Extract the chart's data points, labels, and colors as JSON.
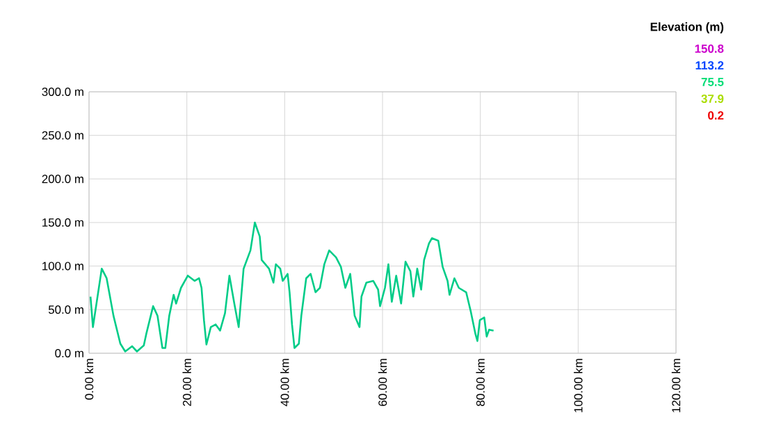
{
  "chart_data": {
    "type": "line",
    "x": [
      0.3,
      0.8,
      2.6,
      3.6,
      5.0,
      6.4,
      7.4,
      8.8,
      9.8,
      11.2,
      11.7,
      13.1,
      14.0,
      15.0,
      15.6,
      16.4,
      17.3,
      17.8,
      18.8,
      20.2,
      21.6,
      22.5,
      23.0,
      23.5,
      24.0,
      24.9,
      25.9,
      26.8,
      27.8,
      28.7,
      29.7,
      30.6,
      31.6,
      33.0,
      33.9,
      34.9,
      35.3,
      36.8,
      37.7,
      38.2,
      39.1,
      39.6,
      40.6,
      41.0,
      41.5,
      42.0,
      42.9,
      43.4,
      44.4,
      45.3,
      46.3,
      47.2,
      48.1,
      49.1,
      50.5,
      51.5,
      52.4,
      53.4,
      54.3,
      55.3,
      55.7,
      56.7,
      58.1,
      59.1,
      59.5,
      60.5,
      61.2,
      61.9,
      62.8,
      63.8,
      64.7,
      65.7,
      66.3,
      67.1,
      67.9,
      68.5,
      69.5,
      70.1,
      71.4,
      72.3,
      73.3,
      73.7,
      74.7,
      75.6,
      77.1,
      78.0,
      79.0,
      79.4,
      79.9,
      80.8,
      81.3,
      81.8,
      82.7
    ],
    "values": [
      65,
      30,
      97,
      86,
      43,
      11,
      2,
      8,
      2,
      9,
      22,
      54,
      43,
      6,
      6,
      43,
      67,
      57,
      75,
      89,
      83,
      86,
      75,
      38,
      10,
      30,
      33,
      26,
      46,
      89,
      57,
      30,
      97,
      118,
      150,
      134,
      107,
      97,
      81,
      102,
      97,
      83,
      91,
      70,
      33,
      6,
      11,
      43,
      86,
      91,
      70,
      75,
      102,
      118,
      110,
      99,
      75,
      91,
      43,
      30,
      65,
      81,
      83,
      73,
      54,
      75,
      102,
      59,
      89,
      57,
      105,
      94,
      65,
      97,
      73,
      107,
      126,
      132,
      129,
      99,
      83,
      67,
      86,
      75,
      70,
      49,
      22,
      14,
      38,
      41,
      19,
      27,
      26
    ],
    "color": "#00cc88",
    "xlim": [
      0,
      120
    ],
    "xticks": [
      {
        "value": 0,
        "label": "0.00 km"
      },
      {
        "value": 20,
        "label": "20.00 km"
      },
      {
        "value": 40,
        "label": "40.00 km"
      },
      {
        "value": 60,
        "label": "60.00 km"
      },
      {
        "value": 80,
        "label": "80.00 km"
      },
      {
        "value": 100,
        "label": "100.00 km"
      },
      {
        "value": 120,
        "label": "120.00 km"
      }
    ],
    "ylim": [
      0,
      300
    ],
    "yticks": [
      {
        "value": 0,
        "label": "0.0 m"
      },
      {
        "value": 50,
        "label": "50.0 m"
      },
      {
        "value": 100,
        "label": "100.0 m"
      },
      {
        "value": 150,
        "label": "150.0 m"
      },
      {
        "value": 200,
        "label": "200.0 m"
      },
      {
        "value": 250,
        "label": "250.0 m"
      },
      {
        "value": 300,
        "label": "300.0 m"
      }
    ],
    "grid": true,
    "annotations": [
      "Elevation (m)",
      "150.8",
      "113.2",
      "75.5",
      "37.9",
      "0.2"
    ]
  }
}
